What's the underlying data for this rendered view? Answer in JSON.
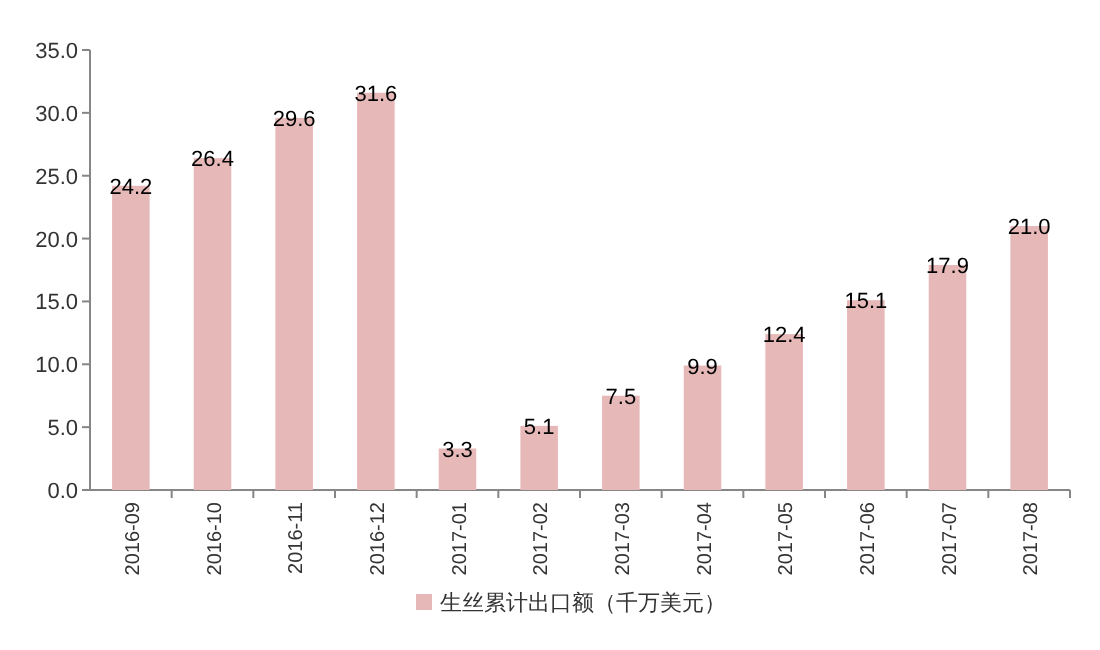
{
  "chart_data": {
    "type": "bar",
    "categories": [
      "2016-09",
      "2016-10",
      "2016-11",
      "2016-12",
      "2017-01",
      "2017-02",
      "2017-03",
      "2017-04",
      "2017-05",
      "2017-06",
      "2017-07",
      "2017-08"
    ],
    "series": [
      {
        "name": "生丝累计出口额（千万美元）",
        "color": "#e6b9b8",
        "values": [
          24.2,
          26.4,
          29.6,
          31.6,
          3.3,
          5.1,
          7.5,
          9.9,
          12.4,
          15.1,
          17.9,
          21.0
        ],
        "value_labels": [
          "24.2",
          "26.4",
          "29.6",
          "31.6",
          "3.3",
          "5.1",
          "7.5",
          "9.9",
          "12.4",
          "15.1",
          "17.9",
          "21.0"
        ]
      }
    ],
    "ylim": [
      0,
      35
    ],
    "yticks": [
      {
        "value": 0,
        "label": "0.0"
      },
      {
        "value": 5,
        "label": "5.0"
      },
      {
        "value": 10,
        "label": "10.0"
      },
      {
        "value": 15,
        "label": "15.0"
      },
      {
        "value": 20,
        "label": "20.0"
      },
      {
        "value": 25,
        "label": "25.0"
      },
      {
        "value": 30,
        "label": "30.0"
      },
      {
        "value": 35,
        "label": "35.0"
      }
    ],
    "grid": false,
    "legend": "bottom"
  }
}
